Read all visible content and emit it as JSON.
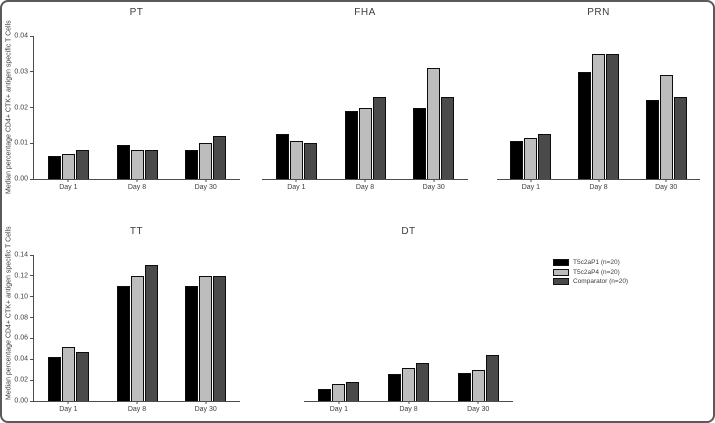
{
  "figure": {
    "y_axis_title": "Median percentage CD4+ CTK+ antigen specific T Cells"
  },
  "colors": {
    "series": [
      "#000000",
      "#bdbdbd",
      "#4a4a4a"
    ],
    "axis": "#4d4d4d",
    "text": "#3d3d3d",
    "background": "#ffffff",
    "frame_border": "#5a5a5a"
  },
  "legend": {
    "items": [
      {
        "label": "T5c2aP1 (n=20)",
        "color": "#000000"
      },
      {
        "label": "T5c2aP4 (n=20)",
        "color": "#bdbdbd"
      },
      {
        "label": "Comparator (n=20)",
        "color": "#4a4a4a"
      }
    ]
  },
  "chart_data": [
    {
      "type": "bar",
      "title": "PT",
      "categories": [
        "Day 1",
        "Day 8",
        "Day 30"
      ],
      "series": [
        {
          "name": "T5c2aP1 (n=20)",
          "values": [
            0.0065,
            0.0095,
            0.008
          ]
        },
        {
          "name": "T5c2aP4 (n=20)",
          "values": [
            0.007,
            0.008,
            0.01
          ]
        },
        {
          "name": "Comparator (n=20)",
          "values": [
            0.008,
            0.008,
            0.012
          ]
        }
      ],
      "ylabel": "Median percentage CD4+ CTK+ antigen specific T Cells",
      "ylim": [
        0,
        0.04
      ],
      "yticks": [
        "0.00",
        "0.01",
        "0.02",
        "0.03",
        "0.04"
      ],
      "show_y_axis": true,
      "grid": false,
      "legend_position": "none"
    },
    {
      "type": "bar",
      "title": "FHA",
      "categories": [
        "Day 1",
        "Day 8",
        "Day 30"
      ],
      "series": [
        {
          "name": "T5c2aP1 (n=20)",
          "values": [
            0.0125,
            0.019,
            0.02
          ]
        },
        {
          "name": "T5c2aP4 (n=20)",
          "values": [
            0.0105,
            0.02,
            0.031
          ]
        },
        {
          "name": "Comparator (n=20)",
          "values": [
            0.01,
            0.023,
            0.023
          ]
        }
      ],
      "ylabel": "",
      "ylim": [
        0,
        0.04
      ],
      "yticks": [],
      "show_y_axis": false,
      "grid": false,
      "legend_position": "none"
    },
    {
      "type": "bar",
      "title": "PRN",
      "categories": [
        "Day 1",
        "Day 8",
        "Day 30"
      ],
      "series": [
        {
          "name": "T5c2aP1 (n=20)",
          "values": [
            0.0105,
            0.03,
            0.022
          ]
        },
        {
          "name": "T5c2aP4 (n=20)",
          "values": [
            0.0115,
            0.035,
            0.029
          ]
        },
        {
          "name": "Comparator (n=20)",
          "values": [
            0.0125,
            0.035,
            0.023
          ]
        }
      ],
      "ylabel": "",
      "ylim": [
        0,
        0.04
      ],
      "yticks": [],
      "show_y_axis": false,
      "grid": false,
      "legend_position": "none"
    },
    {
      "type": "bar",
      "title": "TT",
      "categories": [
        "Day 1",
        "Day 8",
        "Day 30"
      ],
      "series": [
        {
          "name": "T5c2aP1 (n=20)",
          "values": [
            0.042,
            0.11,
            0.11
          ]
        },
        {
          "name": "T5c2aP4 (n=20)",
          "values": [
            0.052,
            0.12,
            0.12
          ]
        },
        {
          "name": "Comparator (n=20)",
          "values": [
            0.047,
            0.13,
            0.12
          ]
        }
      ],
      "ylabel": "Median percentage CD4+ CTK+ antigen specific T Cells",
      "ylim": [
        0,
        0.14
      ],
      "yticks": [
        "0.00",
        "0.02",
        "0.04",
        "0.06",
        "0.08",
        "0.10",
        "0.12",
        "0.14"
      ],
      "show_y_axis": true,
      "grid": false,
      "legend_position": "none"
    },
    {
      "type": "bar",
      "title": "DT",
      "categories": [
        "Day 1",
        "Day 8",
        "Day 30"
      ],
      "series": [
        {
          "name": "T5c2aP1 (n=20)",
          "values": [
            0.012,
            0.026,
            0.027
          ]
        },
        {
          "name": "T5c2aP4 (n=20)",
          "values": [
            0.016,
            0.032,
            0.03
          ]
        },
        {
          "name": "Comparator (n=20)",
          "values": [
            0.018,
            0.036,
            0.044
          ]
        }
      ],
      "ylabel": "",
      "ylim": [
        0,
        0.14
      ],
      "yticks": [],
      "show_y_axis": false,
      "grid": false,
      "legend_position": "right"
    }
  ]
}
